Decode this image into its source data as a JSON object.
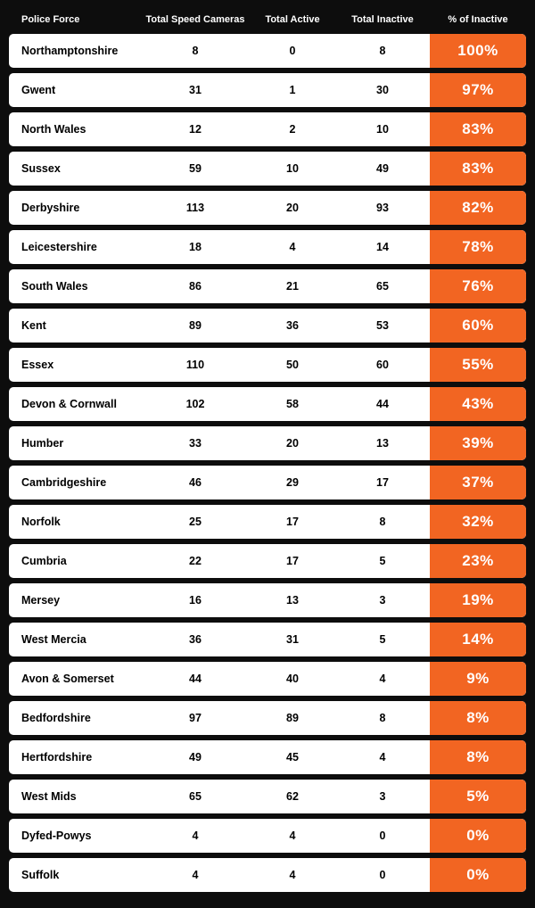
{
  "type": "table",
  "columns": {
    "force": "Police Force",
    "total": "Total Speed Cameras",
    "active": "Total Active",
    "inactive": "Total Inactive",
    "pct": "% of Inactive"
  },
  "colors": {
    "background": "#0d0d0d",
    "row_bg": "#ffffff",
    "pct_bg": "#f26522",
    "pct_text": "#ffffff",
    "header_text": "#ffffff",
    "cell_text": "#000000"
  },
  "rows": [
    {
      "force": "Northamptonshire",
      "total": "8",
      "active": "0",
      "inactive": "8",
      "pct": "100%"
    },
    {
      "force": "Gwent",
      "total": "31",
      "active": "1",
      "inactive": "30",
      "pct": "97%"
    },
    {
      "force": "North Wales",
      "total": "12",
      "active": "2",
      "inactive": "10",
      "pct": "83%"
    },
    {
      "force": "Sussex",
      "total": "59",
      "active": "10",
      "inactive": "49",
      "pct": "83%"
    },
    {
      "force": "Derbyshire",
      "total": "113",
      "active": "20",
      "inactive": "93",
      "pct": "82%"
    },
    {
      "force": "Leicestershire",
      "total": "18",
      "active": "4",
      "inactive": "14",
      "pct": "78%"
    },
    {
      "force": "South Wales",
      "total": "86",
      "active": "21",
      "inactive": "65",
      "pct": "76%"
    },
    {
      "force": "Kent",
      "total": "89",
      "active": "36",
      "inactive": "53",
      "pct": "60%"
    },
    {
      "force": "Essex",
      "total": "110",
      "active": "50",
      "inactive": "60",
      "pct": "55%"
    },
    {
      "force": "Devon & Cornwall",
      "total": "102",
      "active": "58",
      "inactive": "44",
      "pct": "43%"
    },
    {
      "force": "Humber",
      "total": "33",
      "active": "20",
      "inactive": "13",
      "pct": "39%"
    },
    {
      "force": "Cambridgeshire",
      "total": "46",
      "active": "29",
      "inactive": "17",
      "pct": "37%"
    },
    {
      "force": "Norfolk",
      "total": "25",
      "active": "17",
      "inactive": "8",
      "pct": "32%"
    },
    {
      "force": "Cumbria",
      "total": "22",
      "active": "17",
      "inactive": "5",
      "pct": "23%"
    },
    {
      "force": "Mersey",
      "total": "16",
      "active": "13",
      "inactive": "3",
      "pct": "19%"
    },
    {
      "force": "West Mercia",
      "total": "36",
      "active": "31",
      "inactive": "5",
      "pct": "14%"
    },
    {
      "force": "Avon & Somerset",
      "total": "44",
      "active": "40",
      "inactive": "4",
      "pct": "9%"
    },
    {
      "force": "Bedfordshire",
      "total": "97",
      "active": "89",
      "inactive": "8",
      "pct": "8%"
    },
    {
      "force": "Hertfordshire",
      "total": "49",
      "active": "45",
      "inactive": "4",
      "pct": "8%"
    },
    {
      "force": "West Mids",
      "total": "65",
      "active": "62",
      "inactive": "3",
      "pct": "5%"
    },
    {
      "force": "Dyfed-Powys",
      "total": "4",
      "active": "4",
      "inactive": "0",
      "pct": "0%"
    },
    {
      "force": "Suffolk",
      "total": "4",
      "active": "4",
      "inactive": "0",
      "pct": "0%"
    }
  ]
}
